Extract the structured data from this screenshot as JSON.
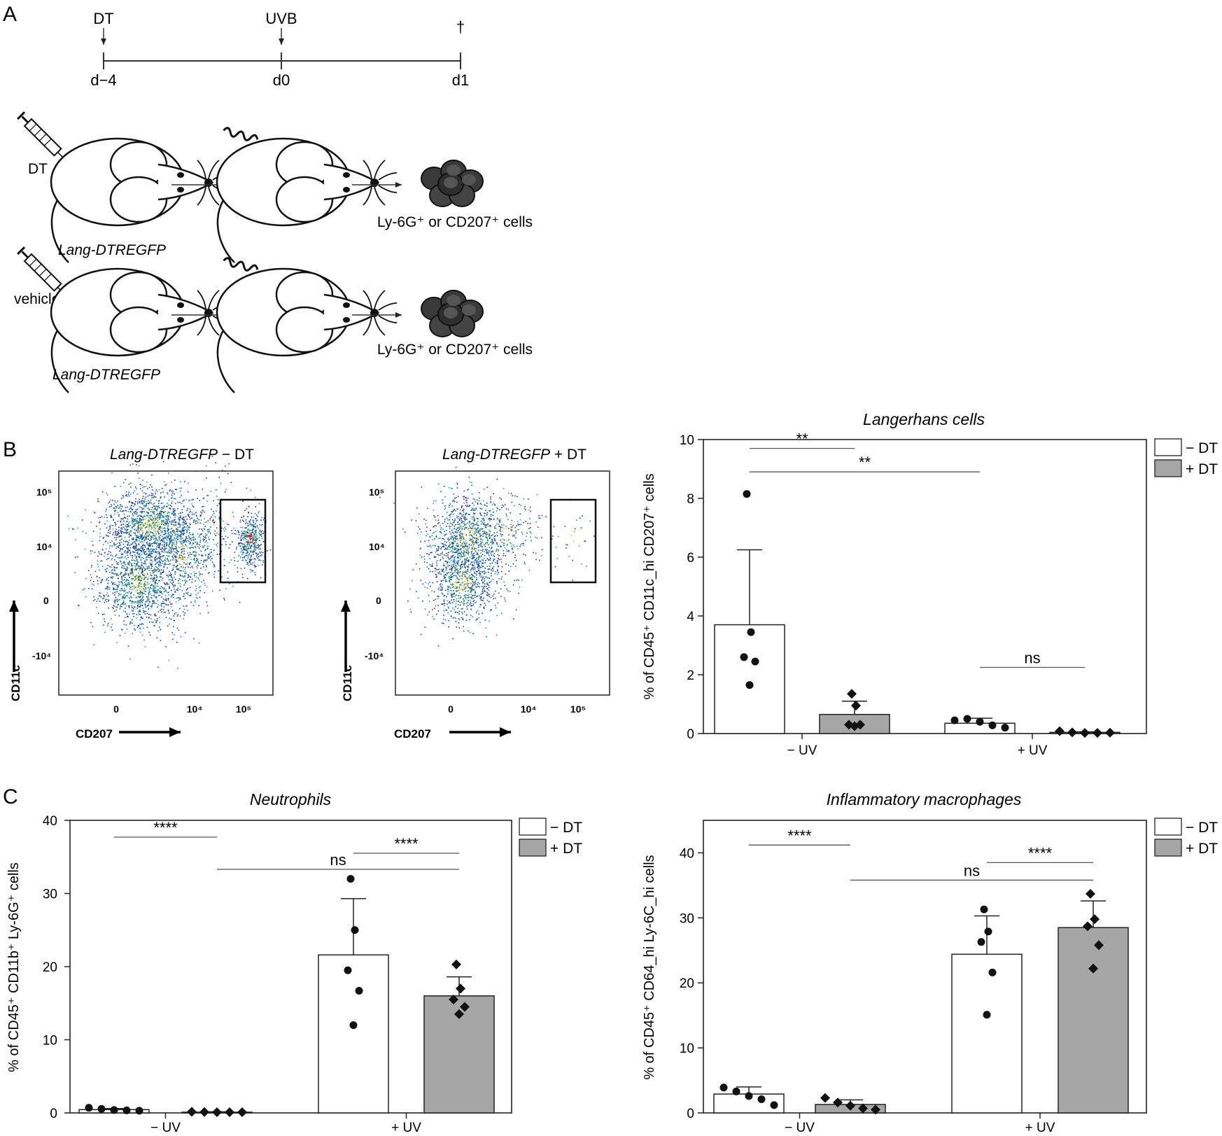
{
  "panels": {
    "a": "A",
    "b": "B",
    "c": "C"
  },
  "timeline": {
    "events": [
      {
        "label": "DT",
        "day": "d−4"
      },
      {
        "label": "UVB",
        "day": "d0"
      },
      {
        "label": "†",
        "day": "d1"
      }
    ]
  },
  "schema": {
    "rows": [
      {
        "treatment": "DT",
        "mouse": "Lang-DTREGFP",
        "cells": "Ly-6G⁺ or CD207⁺ cells"
      },
      {
        "treatment": "vehicle",
        "mouse": "Lang-DTREGFP",
        "cells": "Ly-6G⁺ or CD207⁺ cells"
      }
    ]
  },
  "flow": {
    "left": {
      "title_italic": "Lang-DTREGFP",
      "title_rest": " − DT"
    },
    "right": {
      "title_italic": "Lang-DTREGFP",
      "title_rest": " + DT"
    },
    "y_label": "CD11c",
    "x_label": "CD207",
    "y_ticks": [
      "10⁵",
      "10⁴",
      "0",
      "-10⁴"
    ],
    "x_ticks": [
      "0",
      "10⁴",
      "10⁵"
    ]
  },
  "legend": {
    "minus": "− DT",
    "plus": "+ DT"
  },
  "colors": {
    "grey_bar": "#a6a6a6",
    "white_bar": "#ffffff",
    "axis": "#222222"
  },
  "chart_data": [
    {
      "id": "langerhans",
      "type": "bar",
      "title": "Langerhans cells",
      "ylabel": "% of CD45⁺ CD11c_hi CD207⁺ cells",
      "categories": [
        "− UV",
        "+ UV"
      ],
      "ylim": [
        0,
        10
      ],
      "yticks": [
        0,
        2,
        4,
        6,
        8,
        10
      ],
      "series": [
        {
          "name": "− DT",
          "values": [
            3.7,
            0.35
          ],
          "errors": [
            2.55,
            0.17
          ],
          "points": [
            [
              8.15,
              3.45,
              2.6,
              2.45,
              1.65
            ],
            [
              0.45,
              0.5,
              0.4,
              0.28,
              0.2
            ]
          ]
        },
        {
          "name": "+ DT",
          "values": [
            0.65,
            0.04
          ],
          "errors": [
            0.45,
            0.02
          ],
          "points": [
            [
              1.35,
              0.95,
              0.3,
              0.3,
              0.25
            ],
            [
              0.08,
              0.04,
              0.02,
              0.02,
              0.03
            ]
          ]
        }
      ],
      "significance": [
        {
          "label": "**",
          "from": [
            0,
            0
          ],
          "to": [
            0,
            1
          ],
          "y": 8.9
        },
        {
          "label": "**",
          "from": [
            0,
            0
          ],
          "to": [
            1,
            0
          ],
          "y": 9.7
        },
        {
          "label": "ns",
          "from": [
            0,
            1
          ],
          "to": [
            1,
            1
          ],
          "y": 2.25
        }
      ]
    },
    {
      "id": "neutrophils",
      "type": "bar",
      "title": "Neutrophils",
      "ylabel": "% of CD45⁺ CD11b⁺ Ly-6G⁺ cells",
      "categories": [
        "− UV",
        "+ UV"
      ],
      "ylim": [
        0,
        40
      ],
      "yticks": [
        0,
        10,
        20,
        30,
        40
      ],
      "series": [
        {
          "name": "− DT",
          "values": [
            0.45,
            21.6
          ],
          "errors": [
            0.15,
            7.7
          ],
          "points": [
            [
              0.7,
              0.55,
              0.4,
              0.35,
              0.3
            ],
            [
              32.0,
              25.0,
              19.5,
              16.7,
              12.0
            ]
          ]
        },
        {
          "name": "+ DT",
          "values": [
            0.1,
            16.0
          ],
          "errors": [
            0.05,
            2.6
          ],
          "points": [
            [
              0.15,
              0.12,
              0.1,
              0.1,
              0.1
            ],
            [
              20.3,
              17.0,
              15.5,
              14.5,
              13.5
            ]
          ]
        }
      ],
      "significance": [
        {
          "label": "****",
          "from": [
            0,
            0
          ],
          "to": [
            1,
            0
          ],
          "y": 37.7
        },
        {
          "label": "****",
          "from": [
            0,
            1
          ],
          "to": [
            1,
            1
          ],
          "y": 35.5
        },
        {
          "label": "ns",
          "from": [
            1,
            0
          ],
          "to": [
            1,
            1
          ],
          "y": 33.3
        }
      ]
    },
    {
      "id": "macrophages",
      "type": "bar",
      "title": "Inflammatory macrophages",
      "ylabel": "% of CD45⁺ CD64_hi Ly-6C_hi cells",
      "categories": [
        "− UV",
        "+ UV"
      ],
      "ylim": [
        0,
        45
      ],
      "yticks": [
        0,
        10,
        20,
        30,
        40
      ],
      "series": [
        {
          "name": "− DT",
          "values": [
            2.9,
            24.4
          ],
          "errors": [
            1.1,
            5.9
          ],
          "points": [
            [
              3.9,
              3.3,
              2.6,
              2.1,
              1.2
            ],
            [
              31.3,
              27.9,
              26.3,
              21.6,
              15.1
            ]
          ]
        },
        {
          "name": "+ DT",
          "values": [
            1.3,
            28.5
          ],
          "errors": [
            0.7,
            4.1
          ],
          "points": [
            [
              2.3,
              1.6,
              1.1,
              0.7,
              0.5
            ],
            [
              33.7,
              29.8,
              28.7,
              25.8,
              22.2
            ]
          ]
        }
      ],
      "significance": [
        {
          "label": "****",
          "from": [
            0,
            0
          ],
          "to": [
            1,
            0
          ],
          "y": 41.2
        },
        {
          "label": "****",
          "from": [
            0,
            1
          ],
          "to": [
            1,
            1
          ],
          "y": 38.5
        },
        {
          "label": "ns",
          "from": [
            1,
            0
          ],
          "to": [
            1,
            1
          ],
          "y": 35.8
        }
      ]
    }
  ]
}
